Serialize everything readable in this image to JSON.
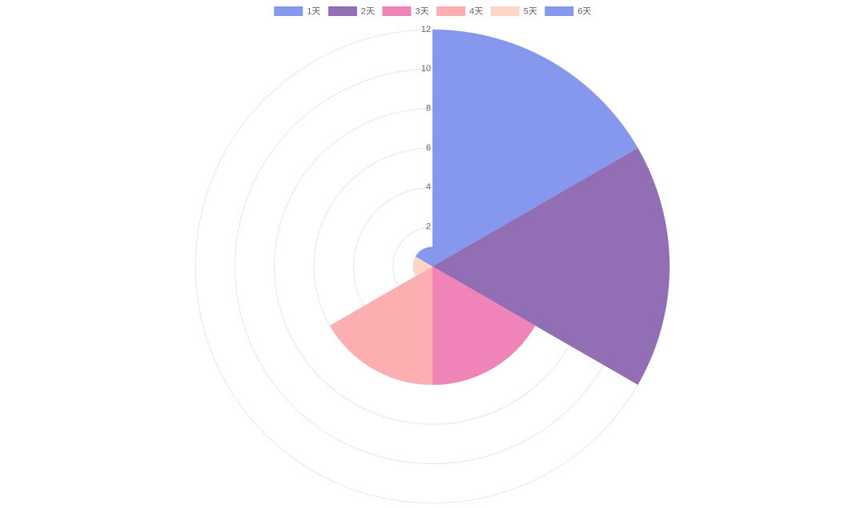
{
  "chart_data": {
    "type": "polarArea",
    "categories": [
      "1天",
      "2天",
      "3天",
      "4天",
      "5天",
      "6天"
    ],
    "values": [
      12,
      12,
      6,
      6,
      1,
      1
    ],
    "colors": [
      "#8598ee",
      "#926fb5",
      "#f083b8",
      "#fdaeb1",
      "#fdd6c8",
      "#8598ee"
    ],
    "rlim": [
      0,
      12
    ],
    "rticks": [
      2,
      4,
      6,
      8,
      10,
      12
    ],
    "grid": true,
    "legend": "top"
  }
}
